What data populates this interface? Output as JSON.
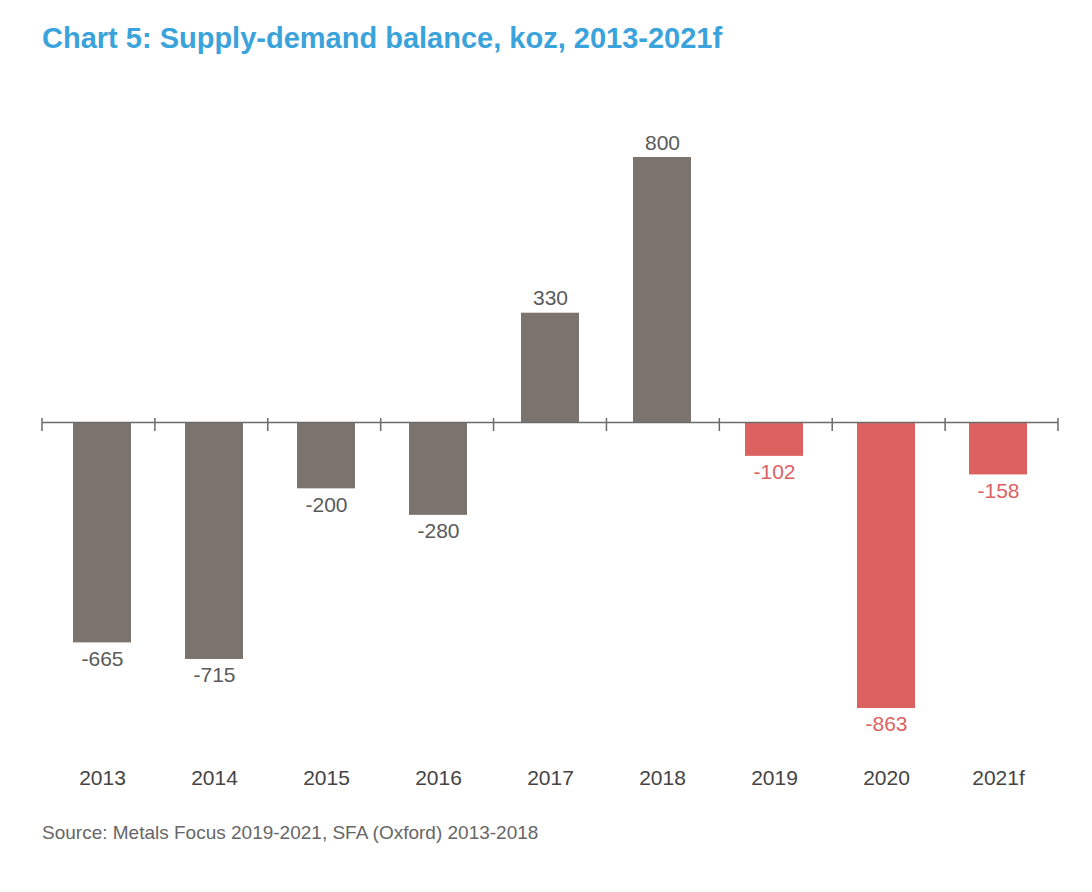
{
  "chart_data": {
    "type": "bar",
    "title": "Chart 5: Supply-demand balance, koz, 2013-2021f",
    "source": "Source: Metals Focus 2019-2021, SFA (Oxford) 2013-2018",
    "categories": [
      "2013",
      "2014",
      "2015",
      "2016",
      "2017",
      "2018",
      "2019",
      "2020",
      "2021f"
    ],
    "values": [
      -665,
      -715,
      -200,
      -280,
      330,
      800,
      -102,
      -863,
      -158
    ],
    "colors": [
      "#7b746e",
      "#7b746e",
      "#7b746e",
      "#7b746e",
      "#7b746e",
      "#7b746e",
      "#dc6262",
      "#dc6262",
      "#dc6262"
    ],
    "ylim": [
      -863,
      800
    ],
    "data_labels": true,
    "tick_labels": "x",
    "grid": false
  }
}
